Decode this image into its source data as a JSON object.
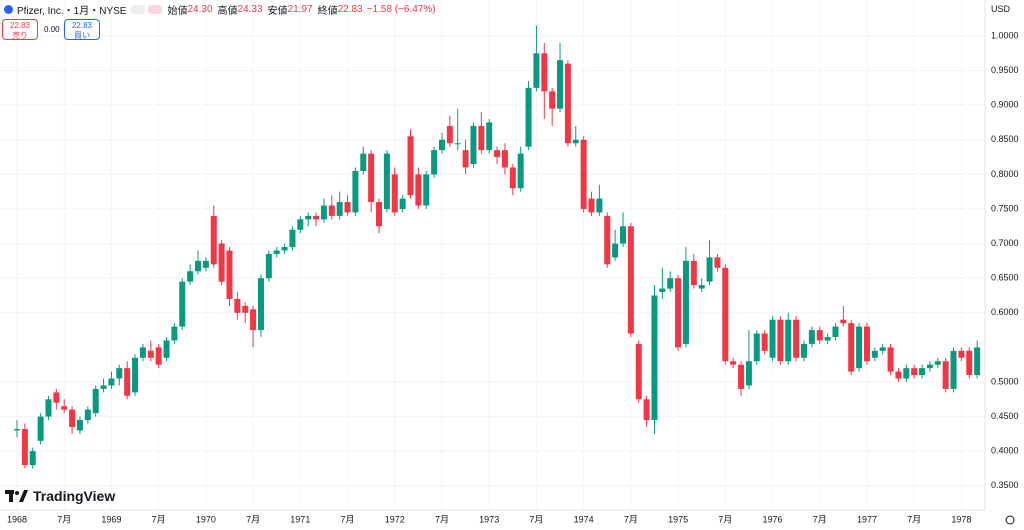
{
  "header": {
    "symbol": "Pfizer, Inc.・1月・NYSE",
    "open_label": "始値",
    "open": "24.30",
    "high_label": "高値",
    "high": "24.33",
    "low_label": "安値",
    "low": "21.97",
    "close_label": "終値",
    "close": "22.83",
    "change": "−1.58 (−6.47%)"
  },
  "trade": {
    "sell_price": "22.83",
    "sell_label": "売り",
    "spread": "0.00",
    "buy_price": "22.83",
    "buy_label": "買い"
  },
  "currency": "USD",
  "logo": "TradingView",
  "chart_data": {
    "type": "candlestick",
    "up_color": "#089981",
    "down_color": "#f23645",
    "grid": true,
    "ylim": [
      0.315,
      1.052
    ],
    "yticks": [
      {
        "value": 0.35,
        "label": "0.3500"
      },
      {
        "value": 0.4,
        "label": "0.4000"
      },
      {
        "value": 0.45,
        "label": "0.4500"
      },
      {
        "value": 0.5,
        "label": "0.5000"
      },
      {
        "value": 0.6,
        "label": "0.6000"
      },
      {
        "value": 0.65,
        "label": "0.6500"
      },
      {
        "value": 0.7,
        "label": "0.7000"
      },
      {
        "value": 0.75,
        "label": "0.7500"
      },
      {
        "value": 0.8,
        "label": "0.8000"
      },
      {
        "value": 0.85,
        "label": "0.8500"
      },
      {
        "value": 0.9,
        "label": "0.9000"
      },
      {
        "value": 0.95,
        "label": "0.9500"
      },
      {
        "value": 1,
        "label": "1.0000"
      }
    ],
    "categories": [
      "1968",
      null,
      null,
      null,
      null,
      null,
      "7月",
      null,
      null,
      null,
      null,
      null,
      "1969",
      null,
      null,
      null,
      null,
      null,
      "7月",
      null,
      null,
      null,
      null,
      null,
      "1970",
      null,
      null,
      null,
      null,
      null,
      "7月",
      null,
      null,
      null,
      null,
      null,
      "1971",
      null,
      null,
      null,
      null,
      null,
      "7月",
      null,
      null,
      null,
      null,
      null,
      "1972",
      null,
      null,
      null,
      null,
      null,
      "7月",
      null,
      null,
      null,
      null,
      null,
      "1973",
      null,
      null,
      null,
      null,
      null,
      "7月",
      null,
      null,
      null,
      null,
      null,
      "1974",
      null,
      null,
      null,
      null,
      null,
      "7月",
      null,
      null,
      null,
      null,
      null,
      "1975",
      null,
      null,
      null,
      null,
      null,
      "7月",
      null,
      null,
      null,
      null,
      null,
      "1976",
      null,
      null,
      null,
      null,
      null,
      "7月",
      null,
      null,
      null,
      null,
      null,
      "1977",
      null,
      null,
      null,
      null,
      null,
      "7月",
      null,
      null,
      null,
      null,
      null,
      "1978",
      null,
      null
    ],
    "open": [
      0.43,
      0.432,
      0.38,
      0.415,
      0.45,
      0.485,
      0.465,
      0.46,
      0.43,
      0.445,
      0.455,
      0.49,
      0.495,
      0.505,
      0.52,
      0.485,
      0.535,
      0.545,
      0.55,
      0.535,
      0.56,
      0.58,
      0.645,
      0.66,
      0.665,
      0.74,
      0.7,
      0.69,
      0.62,
      0.61,
      0.605,
      0.575,
      0.65,
      0.685,
      0.69,
      0.695,
      0.72,
      0.735,
      0.74,
      0.735,
      0.755,
      0.74,
      0.76,
      0.745,
      0.805,
      0.83,
      0.76,
      0.75,
      0.8,
      0.75,
      0.855,
      0.8,
      0.755,
      0.8,
      0.835,
      0.87,
      0.845,
      0.835,
      0.815,
      0.87,
      0.835,
      0.835,
      0.835,
      0.81,
      0.78,
      0.84,
      0.925,
      0.975,
      0.92,
      0.895,
      0.96,
      0.845,
      0.85,
      0.765,
      0.745,
      0.74,
      0.68,
      0.7,
      0.725,
      0.555,
      0.475,
      0.445,
      0.63,
      0.635,
      0.65,
      0.555,
      0.675,
      0.635,
      0.645,
      0.68,
      0.665,
      0.53,
      0.525,
      0.495,
      0.53,
      0.57,
      0.535,
      0.59,
      0.53,
      0.59,
      0.535,
      0.555,
      0.575,
      0.56,
      0.565,
      0.59,
      0.585,
      0.52,
      0.58,
      0.535,
      0.545,
      0.55,
      0.515,
      0.505,
      0.52,
      0.51,
      0.52,
      0.525,
      0.53,
      0.49,
      0.545,
      0.545,
      0.51
    ],
    "high": [
      0.445,
      0.44,
      0.405,
      0.455,
      0.48,
      0.49,
      0.475,
      0.465,
      0.45,
      0.465,
      0.495,
      0.505,
      0.515,
      0.525,
      0.53,
      0.54,
      0.555,
      0.56,
      0.555,
      0.565,
      0.585,
      0.65,
      0.67,
      0.69,
      0.68,
      0.755,
      0.705,
      0.695,
      0.63,
      0.615,
      0.61,
      0.655,
      0.69,
      0.695,
      0.7,
      0.725,
      0.74,
      0.745,
      0.745,
      0.765,
      0.77,
      0.775,
      0.77,
      0.81,
      0.84,
      0.835,
      0.765,
      0.835,
      0.81,
      0.77,
      0.865,
      0.81,
      0.805,
      0.84,
      0.86,
      0.885,
      0.895,
      0.85,
      0.875,
      0.89,
      0.88,
      0.84,
      0.845,
      0.815,
      0.84,
      0.935,
      1.015,
      0.99,
      0.925,
      0.99,
      0.965,
      0.87,
      0.855,
      0.775,
      0.785,
      0.745,
      0.72,
      0.745,
      0.73,
      0.56,
      0.48,
      0.64,
      0.665,
      0.66,
      0.655,
      0.695,
      0.685,
      0.65,
      0.705,
      0.685,
      0.67,
      0.535,
      0.53,
      0.575,
      0.575,
      0.575,
      0.595,
      0.595,
      0.6,
      0.595,
      0.56,
      0.58,
      0.58,
      0.57,
      0.585,
      0.61,
      0.59,
      0.585,
      0.585,
      0.55,
      0.555,
      0.555,
      0.52,
      0.525,
      0.525,
      0.525,
      0.53,
      0.535,
      0.535,
      0.55,
      0.55,
      0.55,
      0.56
    ],
    "low": [
      0.42,
      0.375,
      0.375,
      0.41,
      0.445,
      0.46,
      0.455,
      0.425,
      0.425,
      0.44,
      0.45,
      0.485,
      0.49,
      0.495,
      0.475,
      0.48,
      0.53,
      0.53,
      0.52,
      0.53,
      0.555,
      0.575,
      0.64,
      0.655,
      0.66,
      0.665,
      0.64,
      0.61,
      0.59,
      0.585,
      0.55,
      0.565,
      0.645,
      0.68,
      0.685,
      0.69,
      0.715,
      0.725,
      0.725,
      0.73,
      0.735,
      0.735,
      0.74,
      0.74,
      0.8,
      0.745,
      0.715,
      0.745,
      0.74,
      0.745,
      0.765,
      0.75,
      0.75,
      0.795,
      0.83,
      0.84,
      0.835,
      0.8,
      0.81,
      0.83,
      0.83,
      0.815,
      0.8,
      0.77,
      0.775,
      0.835,
      0.92,
      0.88,
      0.87,
      0.89,
      0.84,
      0.84,
      0.745,
      0.74,
      0.74,
      0.665,
      0.675,
      0.695,
      0.565,
      0.47,
      0.435,
      0.425,
      0.62,
      0.63,
      0.545,
      0.55,
      0.635,
      0.63,
      0.64,
      0.66,
      0.525,
      0.52,
      0.48,
      0.49,
      0.525,
      0.54,
      0.53,
      0.525,
      0.525,
      0.53,
      0.53,
      0.55,
      0.555,
      0.555,
      0.56,
      0.58,
      0.51,
      0.515,
      0.525,
      0.53,
      0.54,
      0.51,
      0.5,
      0.5,
      0.505,
      0.505,
      0.515,
      0.52,
      0.485,
      0.485,
      0.53,
      0.505,
      0.505
    ],
    "close": [
      0.432,
      0.38,
      0.4,
      0.45,
      0.475,
      0.47,
      0.46,
      0.435,
      0.445,
      0.46,
      0.49,
      0.495,
      0.505,
      0.52,
      0.48,
      0.535,
      0.55,
      0.535,
      0.525,
      0.56,
      0.58,
      0.645,
      0.66,
      0.675,
      0.675,
      0.67,
      0.645,
      0.62,
      0.6,
      0.6,
      0.575,
      0.65,
      0.685,
      0.69,
      0.695,
      0.72,
      0.735,
      0.74,
      0.735,
      0.755,
      0.74,
      0.76,
      0.745,
      0.805,
      0.83,
      0.76,
      0.725,
      0.83,
      0.745,
      0.765,
      0.77,
      0.755,
      0.8,
      0.835,
      0.85,
      0.845,
      0.845,
      0.81,
      0.87,
      0.835,
      0.875,
      0.825,
      0.81,
      0.78,
      0.83,
      0.925,
      0.975,
      0.92,
      0.895,
      0.965,
      0.845,
      0.85,
      0.75,
      0.745,
      0.765,
      0.67,
      0.7,
      0.725,
      0.57,
      0.475,
      0.445,
      0.625,
      0.635,
      0.65,
      0.55,
      0.675,
      0.64,
      0.64,
      0.68,
      0.665,
      0.53,
      0.525,
      0.49,
      0.53,
      0.57,
      0.545,
      0.59,
      0.53,
      0.59,
      0.535,
      0.555,
      0.575,
      0.56,
      0.565,
      0.58,
      0.585,
      0.515,
      0.58,
      0.53,
      0.545,
      0.55,
      0.515,
      0.505,
      0.52,
      0.51,
      0.52,
      0.525,
      0.53,
      0.49,
      0.545,
      0.535,
      0.51,
      0.55
    ]
  }
}
